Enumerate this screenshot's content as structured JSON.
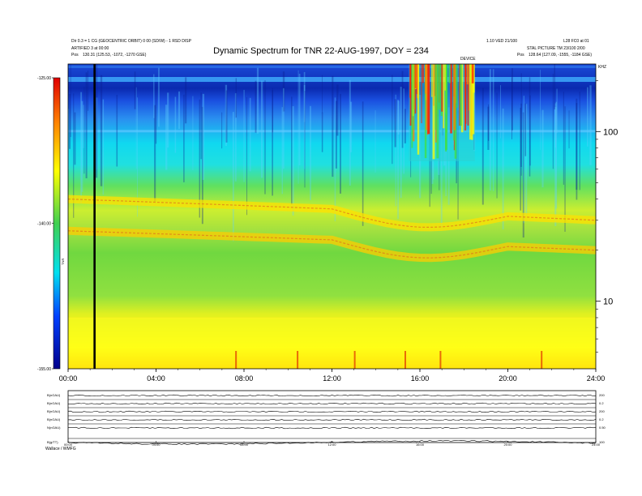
{
  "header": {
    "left_line1": "Dir 0.3 = 1 CG (GEOCENTRIC ORBIT) 0 00 (SD/W) - 1 RSD DISP",
    "left_line2": "ARTIFIED 3 at 00:00",
    "left_pos": "Pos",
    "left_coords": "130.31 (125.53, -1072, -1270 GSE)",
    "right_line1": "1.10 VED 21/100",
    "right_line1b": "L28 FC0 at 01",
    "right_line2": "STAL PICTURE TM 23/100 2/00",
    "right_pos": "Pos",
    "right_coords": "128.64 (127.09, -1555, -1184 GSE)",
    "ktr_label": "KHZ",
    "event_label": "DEVICE"
  },
  "colors": {
    "low": "#0000a0",
    "mid_low": "#00e0f0",
    "mid": "#40d040",
    "mid_high": "#ffff00",
    "high": "#e00000"
  },
  "chart_data": {
    "type": "heatmap",
    "title": "Dynamic Spectrum for TNR 22-AUG-1997, DOY = 234",
    "xlabel": "",
    "ylabel": "KHZ",
    "x_ticks": [
      "00:00",
      "04:00",
      "08:00",
      "12:00",
      "16:00",
      "20:00",
      "24:00"
    ],
    "x_range_hours": [
      0,
      24
    ],
    "y_scale": "log",
    "y_ticks": [
      "100",
      "10"
    ],
    "y_range_khz": [
      4,
      250
    ],
    "colorbar": {
      "label": "TNR",
      "ticks": [
        "-125.00",
        "-140.00",
        "-155.00"
      ],
      "range_db": [
        -155,
        -125
      ]
    },
    "marker_line_hour": 1.2,
    "bands": [
      {
        "name": "plasma line upper",
        "start_khz": 40,
        "end_khz": 30
      },
      {
        "name": "plasma line lower",
        "start_khz": 26,
        "end_khz": 20
      }
    ],
    "event_window_hours": [
      15.5,
      18.5
    ]
  },
  "panels": {
    "labels": [
      "B(nGAU)",
      "B(nGAU)",
      "B(nGAU)",
      "B(nGAU)",
      "N(nGAU)",
      "B(g/TT)"
    ],
    "right_labels": [
      "200",
      "0.2",
      "200",
      "0.2",
      "0.50",
      "100"
    ],
    "x_ticks": [
      "00:00",
      "04:00",
      "08:00",
      "12:00",
      "16:00",
      "20:00",
      "24:00"
    ],
    "footer": "Wallace / WMFG"
  }
}
